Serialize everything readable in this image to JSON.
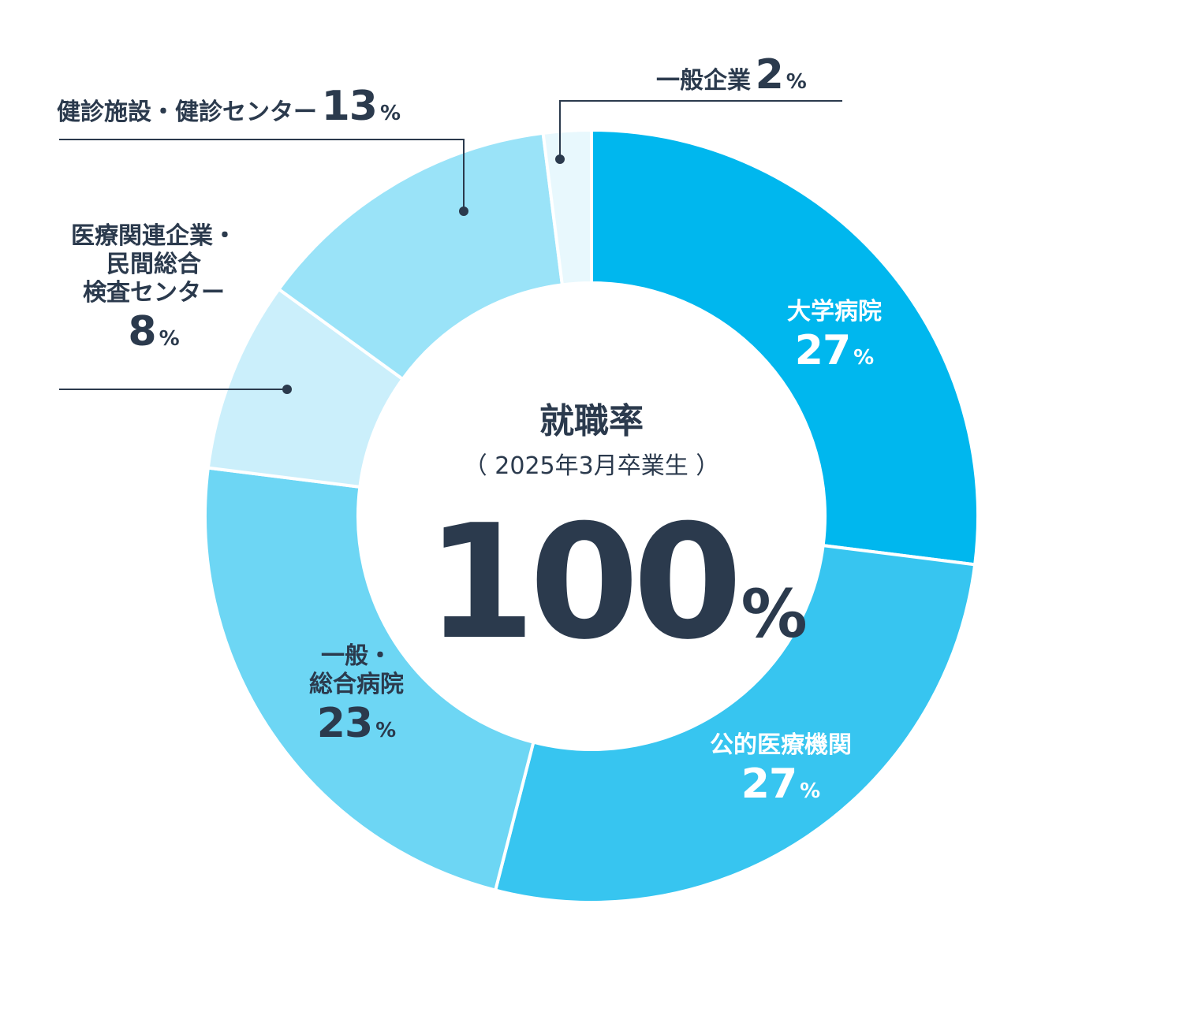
{
  "chart_data": {
    "type": "pie",
    "title": "就職率",
    "subtitle": "（ 2025年3月卒業生 ）",
    "total": {
      "value": "100",
      "unit": "%"
    },
    "unit": "%",
    "slices": [
      {
        "name": "大学病院",
        "value": 27,
        "color": "#00b7ee",
        "label_color": "light"
      },
      {
        "name": "公的医療機関",
        "value": 27,
        "color": "#37c5f0",
        "label_color": "light"
      },
      {
        "name": "一般・総合病院",
        "value": 23,
        "color": "#6dd6f4",
        "label_color": "dark"
      },
      {
        "name": "医療関連企業・民間総合検査センター",
        "value": 8,
        "color": "#cbeffb",
        "label_color": "dark"
      },
      {
        "name": "健診施設・健診センター",
        "value": 13,
        "color": "#9ae3f8",
        "label_color": "dark"
      },
      {
        "name": "一般企業",
        "value": 2,
        "color": "#e8f8fd",
        "label_color": "dark"
      }
    ]
  },
  "labels": {
    "daigaku": {
      "name": "大学病院",
      "value": "27",
      "unit": "%"
    },
    "koteki": {
      "name": "公的医療機関",
      "value": "27",
      "unit": "%"
    },
    "ippan": {
      "line1": "一般・",
      "line2": "総合病院",
      "value": "23",
      "unit": "%"
    },
    "iryo": {
      "line1": "医療関連企業・",
      "line2": "民間総合",
      "line3": "検査センター",
      "value": "8",
      "unit": "%"
    },
    "kenshin": {
      "name": "健診施設・健診センター",
      "value": "13",
      "unit": "%"
    },
    "kigyo": {
      "name": "一般企業",
      "value": "2",
      "unit": "%"
    }
  }
}
